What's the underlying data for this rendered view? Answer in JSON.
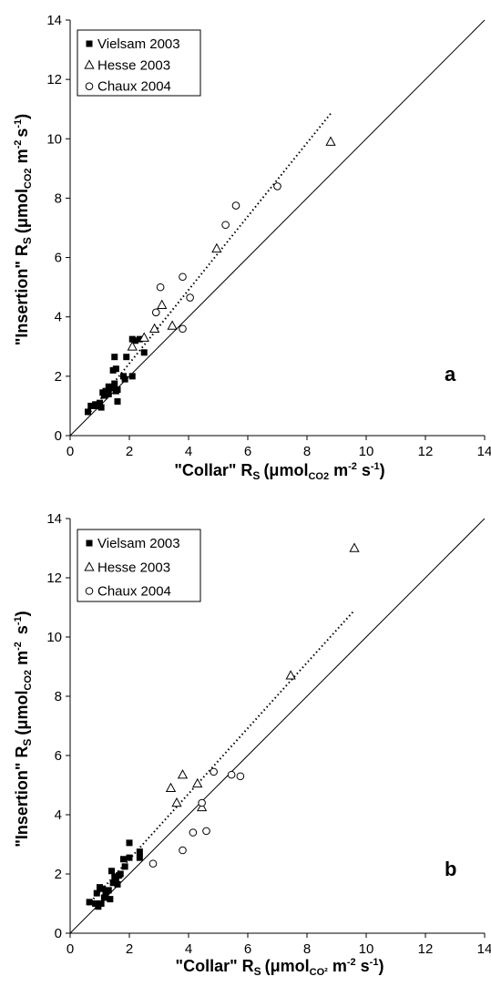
{
  "chart_data": [
    {
      "type": "scatter",
      "panel_label": "a",
      "xlabel": "\"Collar\" R",
      "xlabel_sub": "S",
      "xlabel_unit": "(μmol",
      "xlabel_unit_sub": "CO2",
      "xlabel_unit_tail1": " m",
      "xlabel_sup1": "-2",
      "xlabel_unit_tail2": " s",
      "xlabel_sup2": "-1",
      "xlabel_close": ")",
      "ylabel": "\"Insertion\" R",
      "ylabel_sub": "S",
      "ylabel_unit": "(μmol",
      "ylabel_unit_sub": "CO2",
      "ylabel_unit_tail1": " m",
      "ylabel_sup1": "-2",
      "ylabel_unit_tail2": "s",
      "ylabel_sup2": "-1",
      "ylabel_close": ")",
      "xlim": [
        0,
        14
      ],
      "ylim": [
        0,
        14
      ],
      "xticks": [
        0,
        2,
        4,
        6,
        8,
        10,
        12,
        14
      ],
      "yticks": [
        0,
        2,
        4,
        6,
        8,
        10,
        12,
        14
      ],
      "grid": false,
      "legend_position": "top-left",
      "reference_line": {
        "type": "1:1",
        "x": [
          0,
          14
        ],
        "y": [
          0,
          14
        ]
      },
      "fit_line": {
        "style": "dotted",
        "x": [
          0.6,
          8.8
        ],
        "y": [
          0.7,
          10.85
        ]
      },
      "series": [
        {
          "name": "Vielsam 2003",
          "marker": "filled-square",
          "x": [
            0.6,
            0.7,
            0.85,
            0.9,
            1.0,
            1.05,
            1.1,
            1.15,
            1.2,
            1.3,
            1.3,
            1.4,
            1.45,
            1.5,
            1.5,
            1.55,
            1.55,
            1.6,
            1.6,
            1.8,
            1.85,
            1.9,
            2.1,
            2.1,
            2.2,
            2.35,
            2.5
          ],
          "y": [
            0.8,
            1.0,
            1.05,
            1.0,
            1.1,
            0.95,
            1.45,
            1.35,
            1.5,
            1.4,
            1.65,
            1.6,
            2.2,
            2.65,
            1.75,
            1.5,
            2.25,
            1.55,
            1.15,
            2.0,
            1.9,
            2.65,
            2.0,
            3.25,
            3.2,
            3.25,
            2.8
          ]
        },
        {
          "name": "Hesse 2003",
          "marker": "open-triangle",
          "x": [
            2.1,
            2.5,
            2.85,
            3.1,
            3.45,
            4.95,
            8.8
          ],
          "y": [
            3.0,
            3.3,
            3.6,
            4.4,
            3.7,
            6.3,
            9.9
          ]
        },
        {
          "name": "Chaux 2004",
          "marker": "open-circle",
          "x": [
            2.9,
            3.05,
            3.8,
            3.8,
            4.05,
            5.25,
            5.6,
            7.0
          ],
          "y": [
            4.15,
            5.0,
            5.35,
            3.6,
            4.65,
            7.1,
            7.75,
            8.4
          ]
        }
      ]
    },
    {
      "type": "scatter",
      "panel_label": "b",
      "xlabel": "\"Collar\" R",
      "xlabel_sub": "S",
      "xlabel_unit": "(μmol",
      "xlabel_unit_sub": "CO²",
      "xlabel_unit_tail1": " m",
      "xlabel_sup1": "-2",
      "xlabel_unit_tail2": " s",
      "xlabel_sup2": "-1",
      "xlabel_close": ")",
      "ylabel": "\"Insertion\" R",
      "ylabel_sub": "S",
      "ylabel_unit": "(μmol",
      "ylabel_unit_sub": "CO2",
      "ylabel_unit_tail1": " m",
      "ylabel_sup1": "-2",
      "ylabel_unit_tail2": " s",
      "ylabel_sup2": "-1",
      "ylabel_close": ")",
      "xlim": [
        0,
        14
      ],
      "ylim": [
        0,
        14
      ],
      "xticks": [
        0,
        2,
        4,
        6,
        8,
        10,
        12,
        14
      ],
      "yticks": [
        0,
        2,
        4,
        6,
        8,
        10,
        12,
        14
      ],
      "grid": false,
      "legend_position": "top-left",
      "reference_line": {
        "type": "1:1",
        "x": [
          0,
          14
        ],
        "y": [
          0,
          14
        ]
      },
      "fit_line": {
        "style": "dotted",
        "x": [
          0.6,
          9.6
        ],
        "y": [
          0.95,
          10.9
        ]
      },
      "series": [
        {
          "name": "Vielsam 2003",
          "marker": "filled-square",
          "x": [
            0.65,
            0.85,
            0.9,
            0.95,
            1.0,
            1.05,
            1.1,
            1.15,
            1.2,
            1.3,
            1.35,
            1.4,
            1.45,
            1.5,
            1.55,
            1.6,
            1.65,
            1.7,
            1.8,
            1.85,
            2.0,
            2.0,
            2.35,
            2.35
          ],
          "y": [
            1.05,
            1.0,
            1.35,
            0.9,
            1.55,
            1.0,
            1.5,
            1.2,
            1.35,
            1.45,
            1.15,
            2.1,
            1.7,
            1.9,
            1.85,
            1.65,
            1.95,
            2.0,
            2.5,
            2.25,
            3.05,
            2.55,
            2.75,
            2.55
          ]
        },
        {
          "name": "Hesse 2003",
          "marker": "open-triangle",
          "x": [
            3.4,
            3.6,
            3.8,
            4.3,
            4.45,
            7.45,
            9.6
          ],
          "y": [
            4.9,
            4.4,
            5.35,
            5.05,
            4.25,
            8.7,
            13.0
          ]
        },
        {
          "name": "Chaux 2004",
          "marker": "open-circle",
          "x": [
            2.8,
            3.8,
            4.15,
            4.45,
            4.6,
            4.85,
            5.45,
            5.75
          ],
          "y": [
            2.35,
            2.8,
            3.4,
            4.4,
            3.45,
            5.45,
            5.35,
            5.3
          ]
        }
      ]
    }
  ]
}
